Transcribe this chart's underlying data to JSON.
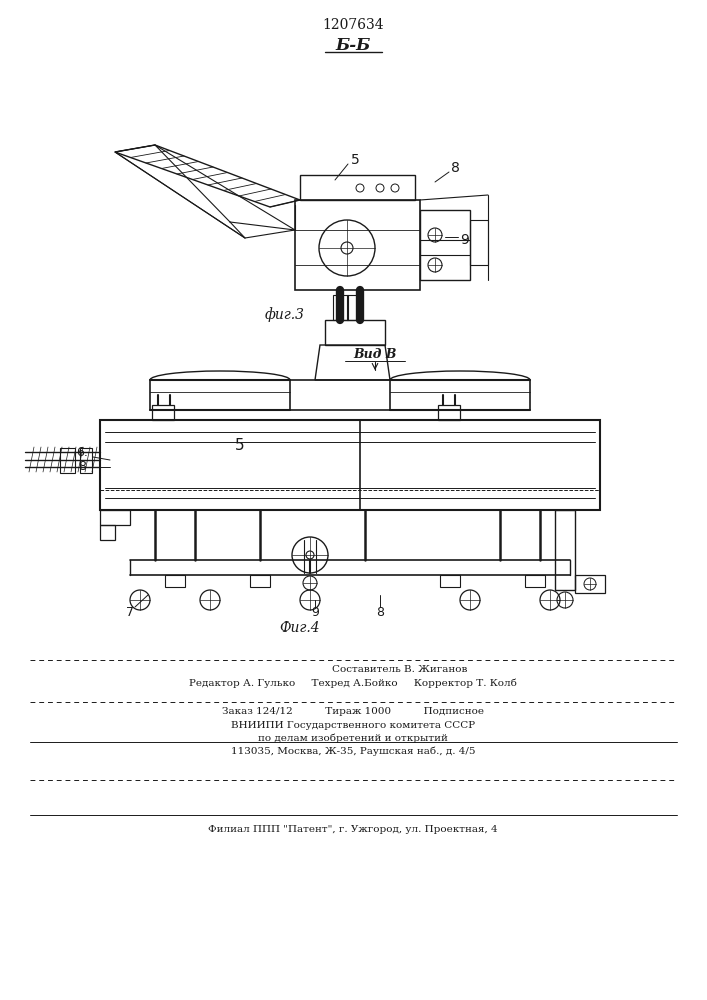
{
  "patent_number": "1207634",
  "section_label": "Б-Б",
  "fig3_label": "фиг.3",
  "fig4_label": "Фиг.4",
  "view_label": "Вид В",
  "composer_line": "Составитель В. Жиганов",
  "editor_line": "Редактор А. Гулько     Техред А.Бойко     Корректор Т. Колб",
  "order_line": "Заказ 124/12          Тираж 1000          Подписное",
  "vniipи_line1": "ВНИИПИ Государственного комитета СССР",
  "vniipи_line2": "по делам изобретений и открытий",
  "vniipи_line3": "113035, Москва, Ж-35, Раушская наб., д. 4/5",
  "filial_line": "Филиал ППП \"Патент\", г. Ужгород, ул. Проектная, 4",
  "bg_color": "#ffffff",
  "line_color": "#1a1a1a",
  "text_color": "#1a1a1a"
}
